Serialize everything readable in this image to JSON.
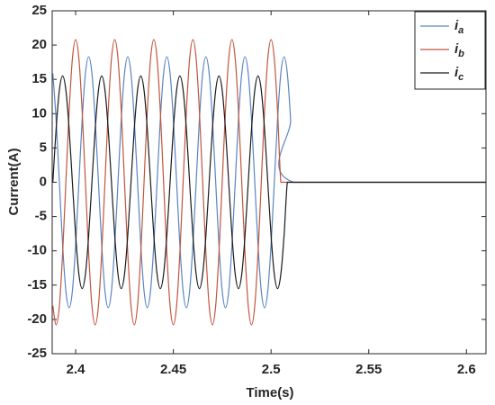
{
  "chart_data": {
    "type": "line",
    "xlabel": "Time(s)",
    "ylabel": "Current(A)",
    "xlim": [
      2.388,
      2.61
    ],
    "ylim": [
      -25,
      25
    ],
    "xticks": [
      2.4,
      2.45,
      2.5,
      2.55,
      2.6
    ],
    "yticks": [
      -25,
      -20,
      -15,
      -10,
      -5,
      0,
      5,
      10,
      15,
      20,
      25
    ],
    "grid": false,
    "legend": "upper right",
    "x": [
      2.38833,
      2.39,
      2.39167,
      2.39333,
      2.395,
      2.39667,
      2.39833,
      2.4,
      2.40167,
      2.40333,
      2.405,
      2.40667,
      2.40833,
      2.41,
      2.41167,
      2.41333,
      2.415,
      2.41667,
      2.41833,
      2.42,
      2.42167,
      2.42333,
      2.425,
      2.42667,
      2.42833,
      2.43,
      2.43167,
      2.43333,
      2.435,
      2.43667,
      2.43833,
      2.44,
      2.44167,
      2.44333,
      2.445,
      2.44667,
      2.44833,
      2.45,
      2.45167,
      2.45333,
      2.455,
      2.45667,
      2.45833,
      2.46,
      2.46167,
      2.46333,
      2.465,
      2.46667,
      2.46833,
      2.47,
      2.47167,
      2.47333,
      2.475,
      2.47667,
      2.47833,
      2.48,
      2.48167,
      2.48333,
      2.485,
      2.48667,
      2.48833,
      2.49,
      2.49167,
      2.49333,
      2.495,
      2.49667,
      2.49833,
      2.5,
      2.50167,
      2.50333,
      2.505,
      2.50667,
      2.50833,
      2.51,
      2.51167,
      2.61
    ],
    "series": [
      {
        "name": "ia",
        "color": "#5a84c2",
        "values": [
          15.85,
          9.15,
          0,
          -9.15,
          -15.85,
          -18.3,
          -15.85,
          -9.15,
          0,
          9.15,
          15.85,
          18.3,
          15.85,
          9.15,
          0,
          -9.15,
          -15.85,
          -18.3,
          -15.85,
          -9.15,
          0,
          9.15,
          15.85,
          18.3,
          15.85,
          9.15,
          0,
          -9.15,
          -15.85,
          -18.3,
          -15.85,
          -9.15,
          0,
          9.15,
          15.85,
          18.3,
          15.85,
          9.15,
          0,
          -9.15,
          -15.85,
          -18.3,
          -15.85,
          -9.15,
          0,
          9.15,
          15.85,
          18.3,
          15.85,
          9.15,
          0,
          -9.15,
          -15.85,
          -18.3,
          -15.85,
          -9.15,
          0,
          9.15,
          15.85,
          18.3,
          15.85,
          9.15,
          0,
          -9.15,
          -15.85,
          -18.3,
          -15.85,
          -9.15,
          0,
          9.15,
          15.85,
          18.3,
          15.85,
          9.15,
          0,
          0
        ]
      },
      {
        "name": "ib",
        "color": "#c2553c",
        "values": [
          -18.01,
          -20.8,
          -18.01,
          -10.4,
          0,
          10.4,
          18.01,
          20.8,
          18.01,
          10.4,
          0,
          -10.4,
          -18.01,
          -20.8,
          -18.01,
          -10.4,
          0,
          10.4,
          18.01,
          20.8,
          18.01,
          10.4,
          0,
          -10.4,
          -18.01,
          -20.8,
          -18.01,
          -10.4,
          0,
          10.4,
          18.01,
          20.8,
          18.01,
          10.4,
          0,
          -10.4,
          -18.01,
          -20.8,
          -18.01,
          -10.4,
          0,
          10.4,
          18.01,
          20.8,
          18.01,
          10.4,
          0,
          -10.4,
          -18.01,
          -20.8,
          -18.01,
          -10.4,
          0,
          10.4,
          18.01,
          20.8,
          18.01,
          10.4,
          0,
          -10.4,
          -18.01,
          -20.8,
          -18.01,
          -10.4,
          0,
          10.4,
          18.01,
          20.8,
          18.01,
          10.4,
          0,
          0,
          0,
          0,
          0,
          0
        ]
      },
      {
        "name": "ic",
        "color": "#1a1a1a",
        "values": [
          0,
          7.75,
          13.42,
          15.5,
          13.42,
          7.75,
          0,
          -7.75,
          -13.42,
          -15.5,
          -13.42,
          -7.75,
          0,
          7.75,
          13.42,
          15.5,
          13.42,
          7.75,
          0,
          -7.75,
          -13.42,
          -15.5,
          -13.42,
          -7.75,
          0,
          7.75,
          13.42,
          15.5,
          13.42,
          7.75,
          0,
          -7.75,
          -13.42,
          -15.5,
          -13.42,
          -7.75,
          0,
          7.75,
          13.42,
          15.5,
          13.42,
          7.75,
          0,
          -7.75,
          -13.42,
          -15.5,
          -13.42,
          -7.75,
          0,
          7.75,
          13.42,
          15.5,
          13.42,
          7.75,
          0,
          -7.75,
          -13.42,
          -15.5,
          -13.42,
          -7.75,
          0,
          7.75,
          13.42,
          15.5,
          13.42,
          7.75,
          0,
          -7.75,
          -13.42,
          -15.5,
          -13.42,
          -7.75,
          0,
          0,
          0,
          0
        ]
      }
    ]
  }
}
